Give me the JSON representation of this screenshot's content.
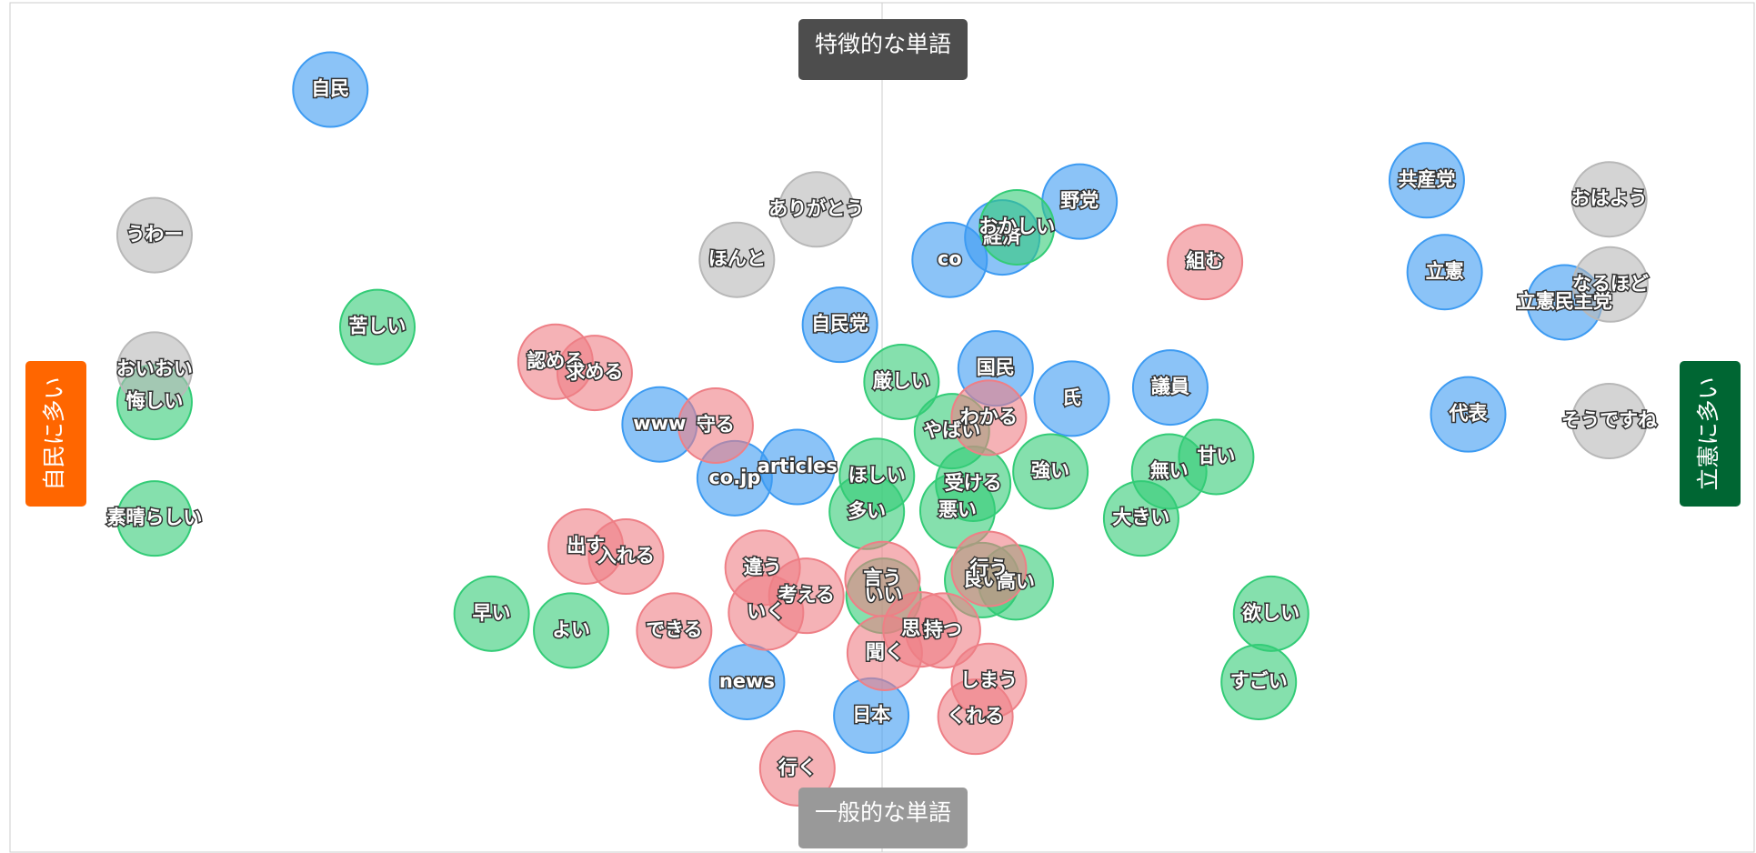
{
  "axis_labels": {
    "top": "特徴的な単語",
    "bottom": "一般的な単語",
    "left": "自民に多い",
    "right": "立憲に多い"
  },
  "groups": {
    "blue": "#3d9bf2",
    "green": "#33cc77",
    "red": "#ee7f86",
    "gray": "#b8b8b8"
  },
  "nodes": [
    {
      "label": "自民",
      "group": "blue"
    },
    {
      "label": "co",
      "group": "blue"
    },
    {
      "label": "野党",
      "group": "blue"
    },
    {
      "label": "経済",
      "group": "blue"
    },
    {
      "label": "自民党",
      "group": "blue"
    },
    {
      "label": "国民",
      "group": "blue"
    },
    {
      "label": "氏",
      "group": "blue"
    },
    {
      "label": "議員",
      "group": "blue"
    },
    {
      "label": "www",
      "group": "blue"
    },
    {
      "label": "co.jp",
      "group": "blue"
    },
    {
      "label": "articles",
      "group": "blue"
    },
    {
      "label": "news",
      "group": "blue"
    },
    {
      "label": "日本",
      "group": "blue"
    },
    {
      "label": "共産党",
      "group": "blue"
    },
    {
      "label": "立憲",
      "group": "blue"
    },
    {
      "label": "立憲民主党",
      "group": "blue"
    },
    {
      "label": "代表",
      "group": "blue"
    },
    {
      "label": "おかしい",
      "group": "green"
    },
    {
      "label": "苦しい",
      "group": "green"
    },
    {
      "label": "悔しい",
      "group": "green"
    },
    {
      "label": "素晴らしい",
      "group": "green"
    },
    {
      "label": "厳しい",
      "group": "green"
    },
    {
      "label": "やばい",
      "group": "green"
    },
    {
      "label": "ほしい",
      "group": "green"
    },
    {
      "label": "多い",
      "group": "green"
    },
    {
      "label": "受ける",
      "group": "green"
    },
    {
      "label": "悪い",
      "group": "green"
    },
    {
      "label": "強い",
      "group": "green"
    },
    {
      "label": "無い",
      "group": "green"
    },
    {
      "label": "甘い",
      "group": "green"
    },
    {
      "label": "大きい",
      "group": "green"
    },
    {
      "label": "早い",
      "group": "green"
    },
    {
      "label": "よい",
      "group": "green"
    },
    {
      "label": "いい",
      "group": "green"
    },
    {
      "label": "良い",
      "group": "green"
    },
    {
      "label": "高い",
      "group": "green"
    },
    {
      "label": "欲しい",
      "group": "green"
    },
    {
      "label": "すごい",
      "group": "green"
    },
    {
      "label": "組む",
      "group": "red"
    },
    {
      "label": "認める",
      "group": "red"
    },
    {
      "label": "求める",
      "group": "red"
    },
    {
      "label": "守る",
      "group": "red"
    },
    {
      "label": "わかる",
      "group": "red"
    },
    {
      "label": "出す",
      "group": "red"
    },
    {
      "label": "入れる",
      "group": "red"
    },
    {
      "label": "違う",
      "group": "red"
    },
    {
      "label": "考える",
      "group": "red"
    },
    {
      "label": "いく",
      "group": "red"
    },
    {
      "label": "できる",
      "group": "red"
    },
    {
      "label": "言う",
      "group": "red"
    },
    {
      "label": "行う",
      "group": "red"
    },
    {
      "label": "思う",
      "group": "red"
    },
    {
      "label": "持つ",
      "group": "red"
    },
    {
      "label": "聞く",
      "group": "red"
    },
    {
      "label": "しまう",
      "group": "red"
    },
    {
      "label": "くれる",
      "group": "red"
    },
    {
      "label": "行く",
      "group": "red"
    },
    {
      "label": "ありがとう",
      "group": "gray"
    },
    {
      "label": "ほんと",
      "group": "gray"
    },
    {
      "label": "うわー",
      "group": "gray"
    },
    {
      "label": "おいおい",
      "group": "gray"
    },
    {
      "label": "おはよう",
      "group": "gray"
    },
    {
      "label": "なるほど",
      "group": "gray"
    },
    {
      "label": "そうですね",
      "group": "gray"
    }
  ]
}
